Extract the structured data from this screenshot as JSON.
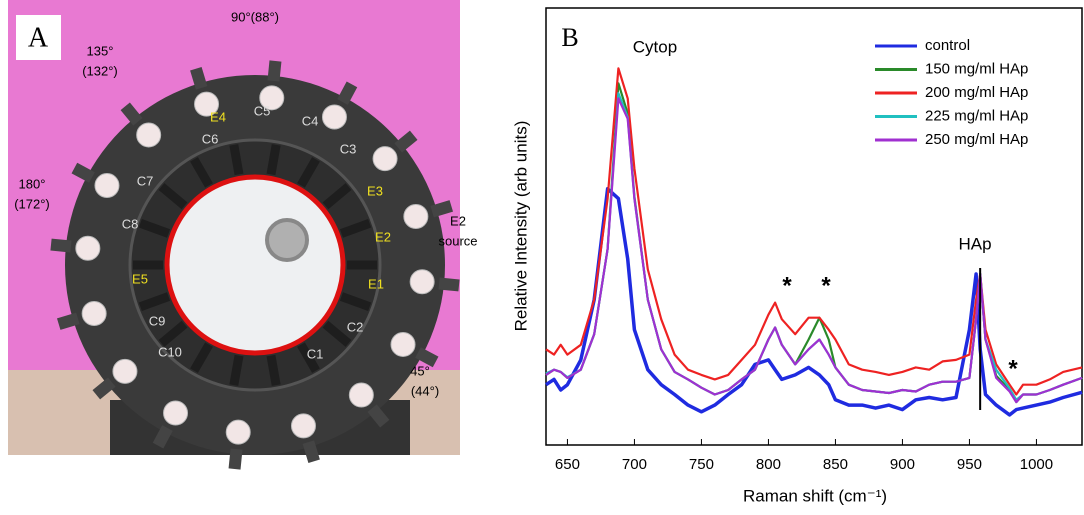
{
  "panel_a": {
    "label": "A",
    "angles": [
      "90°(88°)",
      "135°",
      "(132°)",
      "180°",
      "(172°)",
      "E2",
      "source",
      "45°",
      "(44°)"
    ],
    "channels": [
      "C1",
      "C2",
      "C3",
      "C4",
      "C5",
      "C6",
      "C7",
      "C8",
      "C9",
      "C10"
    ],
    "electrodes": [
      "E1",
      "E2",
      "E3",
      "E4",
      "E5"
    ]
  },
  "chart_data": {
    "type": "line",
    "panel_label": "B",
    "x_label": "Raman shift (cm⁻¹)",
    "y_label": "Relative Intensity (arb units)",
    "annotations": [
      "Cytop",
      "HAp",
      "*",
      "*",
      "*"
    ],
    "xlim": [
      634,
      1034
    ],
    "xticks": [
      650,
      700,
      750,
      800,
      850,
      900,
      950,
      1000
    ],
    "ylim": [
      0,
      5.8
    ],
    "legend": "upper right",
    "x": [
      634,
      640,
      645,
      650,
      660,
      670,
      680,
      688,
      695,
      700,
      710,
      720,
      730,
      740,
      750,
      760,
      770,
      780,
      790,
      800,
      805,
      810,
      820,
      830,
      838,
      845,
      850,
      860,
      870,
      880,
      890,
      900,
      910,
      920,
      930,
      940,
      950,
      955,
      958,
      962,
      970,
      980,
      985,
      990,
      1000,
      1010,
      1020,
      1034
    ],
    "series": [
      {
        "name": "control",
        "color": "#1f2be0",
        "values": [
          0.8,
          0.87,
          0.73,
          0.8,
          1.13,
          1.93,
          3.4,
          3.27,
          2.47,
          1.53,
          1.0,
          0.8,
          0.67,
          0.53,
          0.44,
          0.53,
          0.67,
          0.8,
          1.07,
          1.13,
          1.0,
          0.87,
          0.93,
          1.03,
          0.93,
          0.8,
          0.6,
          0.53,
          0.53,
          0.49,
          0.53,
          0.47,
          0.6,
          0.63,
          0.6,
          0.63,
          1.53,
          2.27,
          1.27,
          0.67,
          0.53,
          0.4,
          0.47,
          0.49,
          0.53,
          0.57,
          0.63,
          0.7
        ]
      },
      {
        "name": "150 mg/ml HAp",
        "color": "#2a8a2a",
        "values": [
          0.93,
          1.0,
          0.97,
          0.89,
          1.0,
          1.47,
          2.6,
          4.8,
          4.4,
          3.3,
          1.93,
          1.27,
          0.97,
          0.87,
          0.76,
          0.67,
          0.73,
          0.87,
          1.0,
          1.4,
          1.56,
          1.33,
          1.07,
          1.4,
          1.69,
          1.4,
          1.03,
          0.8,
          0.73,
          0.71,
          0.69,
          0.73,
          0.71,
          0.8,
          0.84,
          0.84,
          0.89,
          1.67,
          2.27,
          1.4,
          0.92,
          0.73,
          0.57,
          0.67,
          0.67,
          0.73,
          0.8,
          0.89
        ]
      },
      {
        "name": "200 mg/ml HAp",
        "color": "#ee2222",
        "values": [
          1.27,
          1.2,
          1.33,
          1.2,
          1.33,
          1.93,
          3.27,
          5.0,
          4.6,
          3.67,
          2.33,
          1.67,
          1.2,
          1.0,
          0.93,
          0.87,
          0.93,
          1.13,
          1.33,
          1.73,
          1.89,
          1.67,
          1.47,
          1.69,
          1.69,
          1.53,
          1.4,
          1.07,
          1.0,
          0.97,
          0.93,
          0.97,
          1.03,
          1.0,
          1.11,
          1.13,
          1.2,
          1.93,
          2.27,
          1.53,
          1.07,
          0.8,
          0.67,
          0.8,
          0.8,
          0.87,
          0.97,
          1.03
        ]
      },
      {
        "name": "225 mg/ml HAp",
        "color": "#20c0c0",
        "values": [
          0.95,
          1.0,
          0.97,
          0.9,
          1.0,
          1.47,
          2.6,
          4.67,
          4.35,
          3.27,
          1.93,
          1.27,
          0.97,
          0.87,
          0.76,
          0.67,
          0.73,
          0.87,
          1.0,
          1.4,
          1.56,
          1.33,
          1.07,
          1.27,
          1.4,
          1.2,
          1.03,
          0.8,
          0.73,
          0.71,
          0.69,
          0.73,
          0.71,
          0.8,
          0.84,
          0.84,
          0.89,
          1.67,
          2.27,
          1.4,
          1.0,
          0.75,
          0.6,
          0.67,
          0.67,
          0.73,
          0.8,
          0.89
        ]
      },
      {
        "name": "250 mg/ml HAp",
        "color": "#a030d0",
        "values": [
          0.93,
          1.0,
          0.97,
          0.89,
          1.0,
          1.47,
          2.6,
          4.6,
          4.33,
          3.27,
          1.93,
          1.27,
          0.97,
          0.87,
          0.76,
          0.67,
          0.73,
          0.87,
          1.0,
          1.4,
          1.56,
          1.33,
          1.07,
          1.27,
          1.4,
          1.2,
          1.03,
          0.8,
          0.73,
          0.71,
          0.69,
          0.73,
          0.71,
          0.8,
          0.84,
          0.84,
          0.89,
          1.67,
          2.27,
          1.4,
          0.89,
          0.71,
          0.57,
          0.67,
          0.67,
          0.73,
          0.8,
          0.89
        ]
      }
    ]
  }
}
